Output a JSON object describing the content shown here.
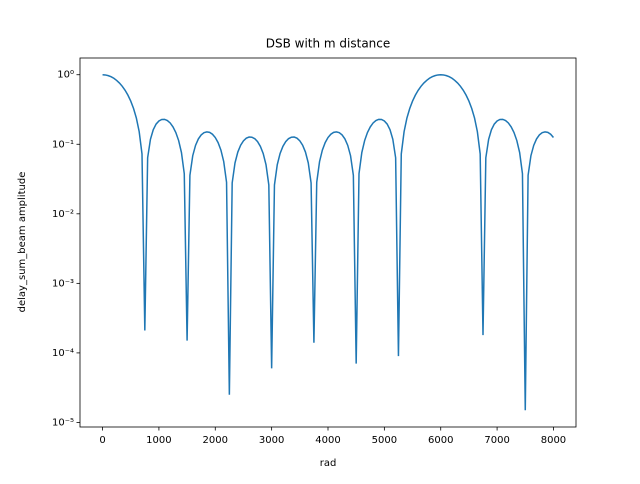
{
  "chart_data": {
    "type": "line",
    "title": "DSB with m distance",
    "x_label": "rad",
    "y_label": "delay_sum_beam amplitude",
    "color": "#1f77b4",
    "log_y": true,
    "x": [
      0,
      50,
      100,
      150,
      200,
      250,
      300,
      350,
      400,
      450,
      500,
      550,
      600,
      650,
      700,
      750,
      800,
      850,
      900,
      950,
      1000,
      1050,
      1100,
      1150,
      1200,
      1250,
      1300,
      1350,
      1400,
      1450,
      1500,
      1550,
      1600,
      1650,
      1700,
      1750,
      1800,
      1850,
      1900,
      1950,
      2000,
      2050,
      2100,
      2150,
      2200,
      2250,
      2300,
      2350,
      2400,
      2450,
      2500,
      2550,
      2600,
      2650,
      2700,
      2750,
      2800,
      2850,
      2900,
      2950,
      3000,
      3050,
      3100,
      3150,
      3200,
      3250,
      3300,
      3350,
      3400,
      3450,
      3500,
      3550,
      3600,
      3650,
      3700,
      3750,
      3800,
      3850,
      3900,
      3950,
      4000,
      4050,
      4100,
      4150,
      4200,
      4250,
      4300,
      4350,
      4400,
      4450,
      4500,
      4550,
      4600,
      4650,
      4700,
      4750,
      4800,
      4850,
      4900,
      4950,
      5000,
      5050,
      5100,
      5150,
      5200,
      5250,
      5300,
      5350,
      5400,
      5450,
      5500,
      5550,
      5600,
      5650,
      5700,
      5750,
      5800,
      5850,
      5900,
      5950,
      6000,
      6050,
      6100,
      6150,
      6200,
      6250,
      6300,
      6350,
      6400,
      6450,
      6500,
      6550,
      6600,
      6650,
      6700,
      6750,
      6800,
      6850,
      6900,
      6950,
      7000,
      7050,
      7100,
      7150,
      7200,
      7250,
      7300,
      7350,
      7400,
      7450,
      7500,
      7550,
      7600,
      7650,
      7700,
      7750,
      7800,
      7850,
      7900,
      7950,
      8000
    ],
    "values": [
      1,
      0.993,
      0.971,
      0.936,
      0.889,
      0.829,
      0.76,
      0.682,
      0.598,
      0.509,
      0.418,
      0.327,
      0.238,
      0.152,
      0.0725,
      0.00021,
      0.0639,
      0.118,
      0.162,
      0.195,
      0.2165,
      0.2275,
      0.2283,
      0.2195,
      0.2023,
      0.1778,
      0.1476,
      0.1131,
      0.076,
      0.0378,
      0.00015,
      0.0358,
      0.0684,
      0.0966,
      0.1195,
      0.1364,
      0.147,
      0.1508,
      0.1482,
      0.1394,
      0.125,
      0.1057,
      0.0825,
      0.0563,
      0.0284,
      2.5e-05,
      0.0278,
      0.0539,
      0.0773,
      0.0969,
      0.1121,
      0.1223,
      0.1271,
      0.1264,
      0.1204,
      0.1092,
      0.0934,
      0.0737,
      0.0509,
      0.026,
      6e-05,
      0.026,
      0.0509,
      0.0737,
      0.0934,
      0.1092,
      0.1204,
      0.1264,
      0.1271,
      0.1223,
      0.1121,
      0.0969,
      0.0773,
      0.0539,
      0.0278,
      0.00014,
      0.0284,
      0.0563,
      0.0825,
      0.1057,
      0.125,
      0.1394,
      0.1482,
      0.1508,
      0.147,
      0.1364,
      0.1195,
      0.0966,
      0.0684,
      0.0358,
      7e-05,
      0.0378,
      0.076,
      0.1131,
      0.1476,
      0.1778,
      0.2023,
      0.2195,
      0.2283,
      0.2275,
      0.2165,
      0.195,
      0.162,
      0.118,
      0.0639,
      9e-05,
      0.0725,
      0.152,
      0.238,
      0.327,
      0.418,
      0.509,
      0.598,
      0.682,
      0.76,
      0.829,
      0.889,
      0.936,
      0.971,
      0.993,
      1,
      0.993,
      0.971,
      0.936,
      0.889,
      0.829,
      0.76,
      0.682,
      0.598,
      0.509,
      0.418,
      0.327,
      0.238,
      0.152,
      0.0725,
      0.00018,
      0.0639,
      0.118,
      0.162,
      0.195,
      0.2165,
      0.2275,
      0.2283,
      0.2195,
      0.2023,
      0.1778,
      0.1476,
      0.1131,
      0.076,
      0.0378,
      1.5e-05,
      0.0358,
      0.0684,
      0.0966,
      0.1195,
      0.1364,
      0.147,
      0.1508,
      0.1482,
      0.1394,
      0.125
    ],
    "xlim": [
      -400,
      8400
    ],
    "xticks": [
      0,
      1000,
      2000,
      3000,
      4000,
      5000,
      6000,
      7000,
      8000
    ],
    "ylim": [
      8.6e-06,
      1.74
    ],
    "yticks": [
      {
        "value": 1e-05,
        "label": "10⁻⁵"
      },
      {
        "value": 0.0001,
        "label": "10⁻⁴"
      },
      {
        "value": 0.001,
        "label": "10⁻³"
      },
      {
        "value": 0.01,
        "label": "10⁻²"
      },
      {
        "value": 0.1,
        "label": "10⁻¹"
      },
      {
        "value": 1,
        "label": "10⁰"
      }
    ]
  }
}
